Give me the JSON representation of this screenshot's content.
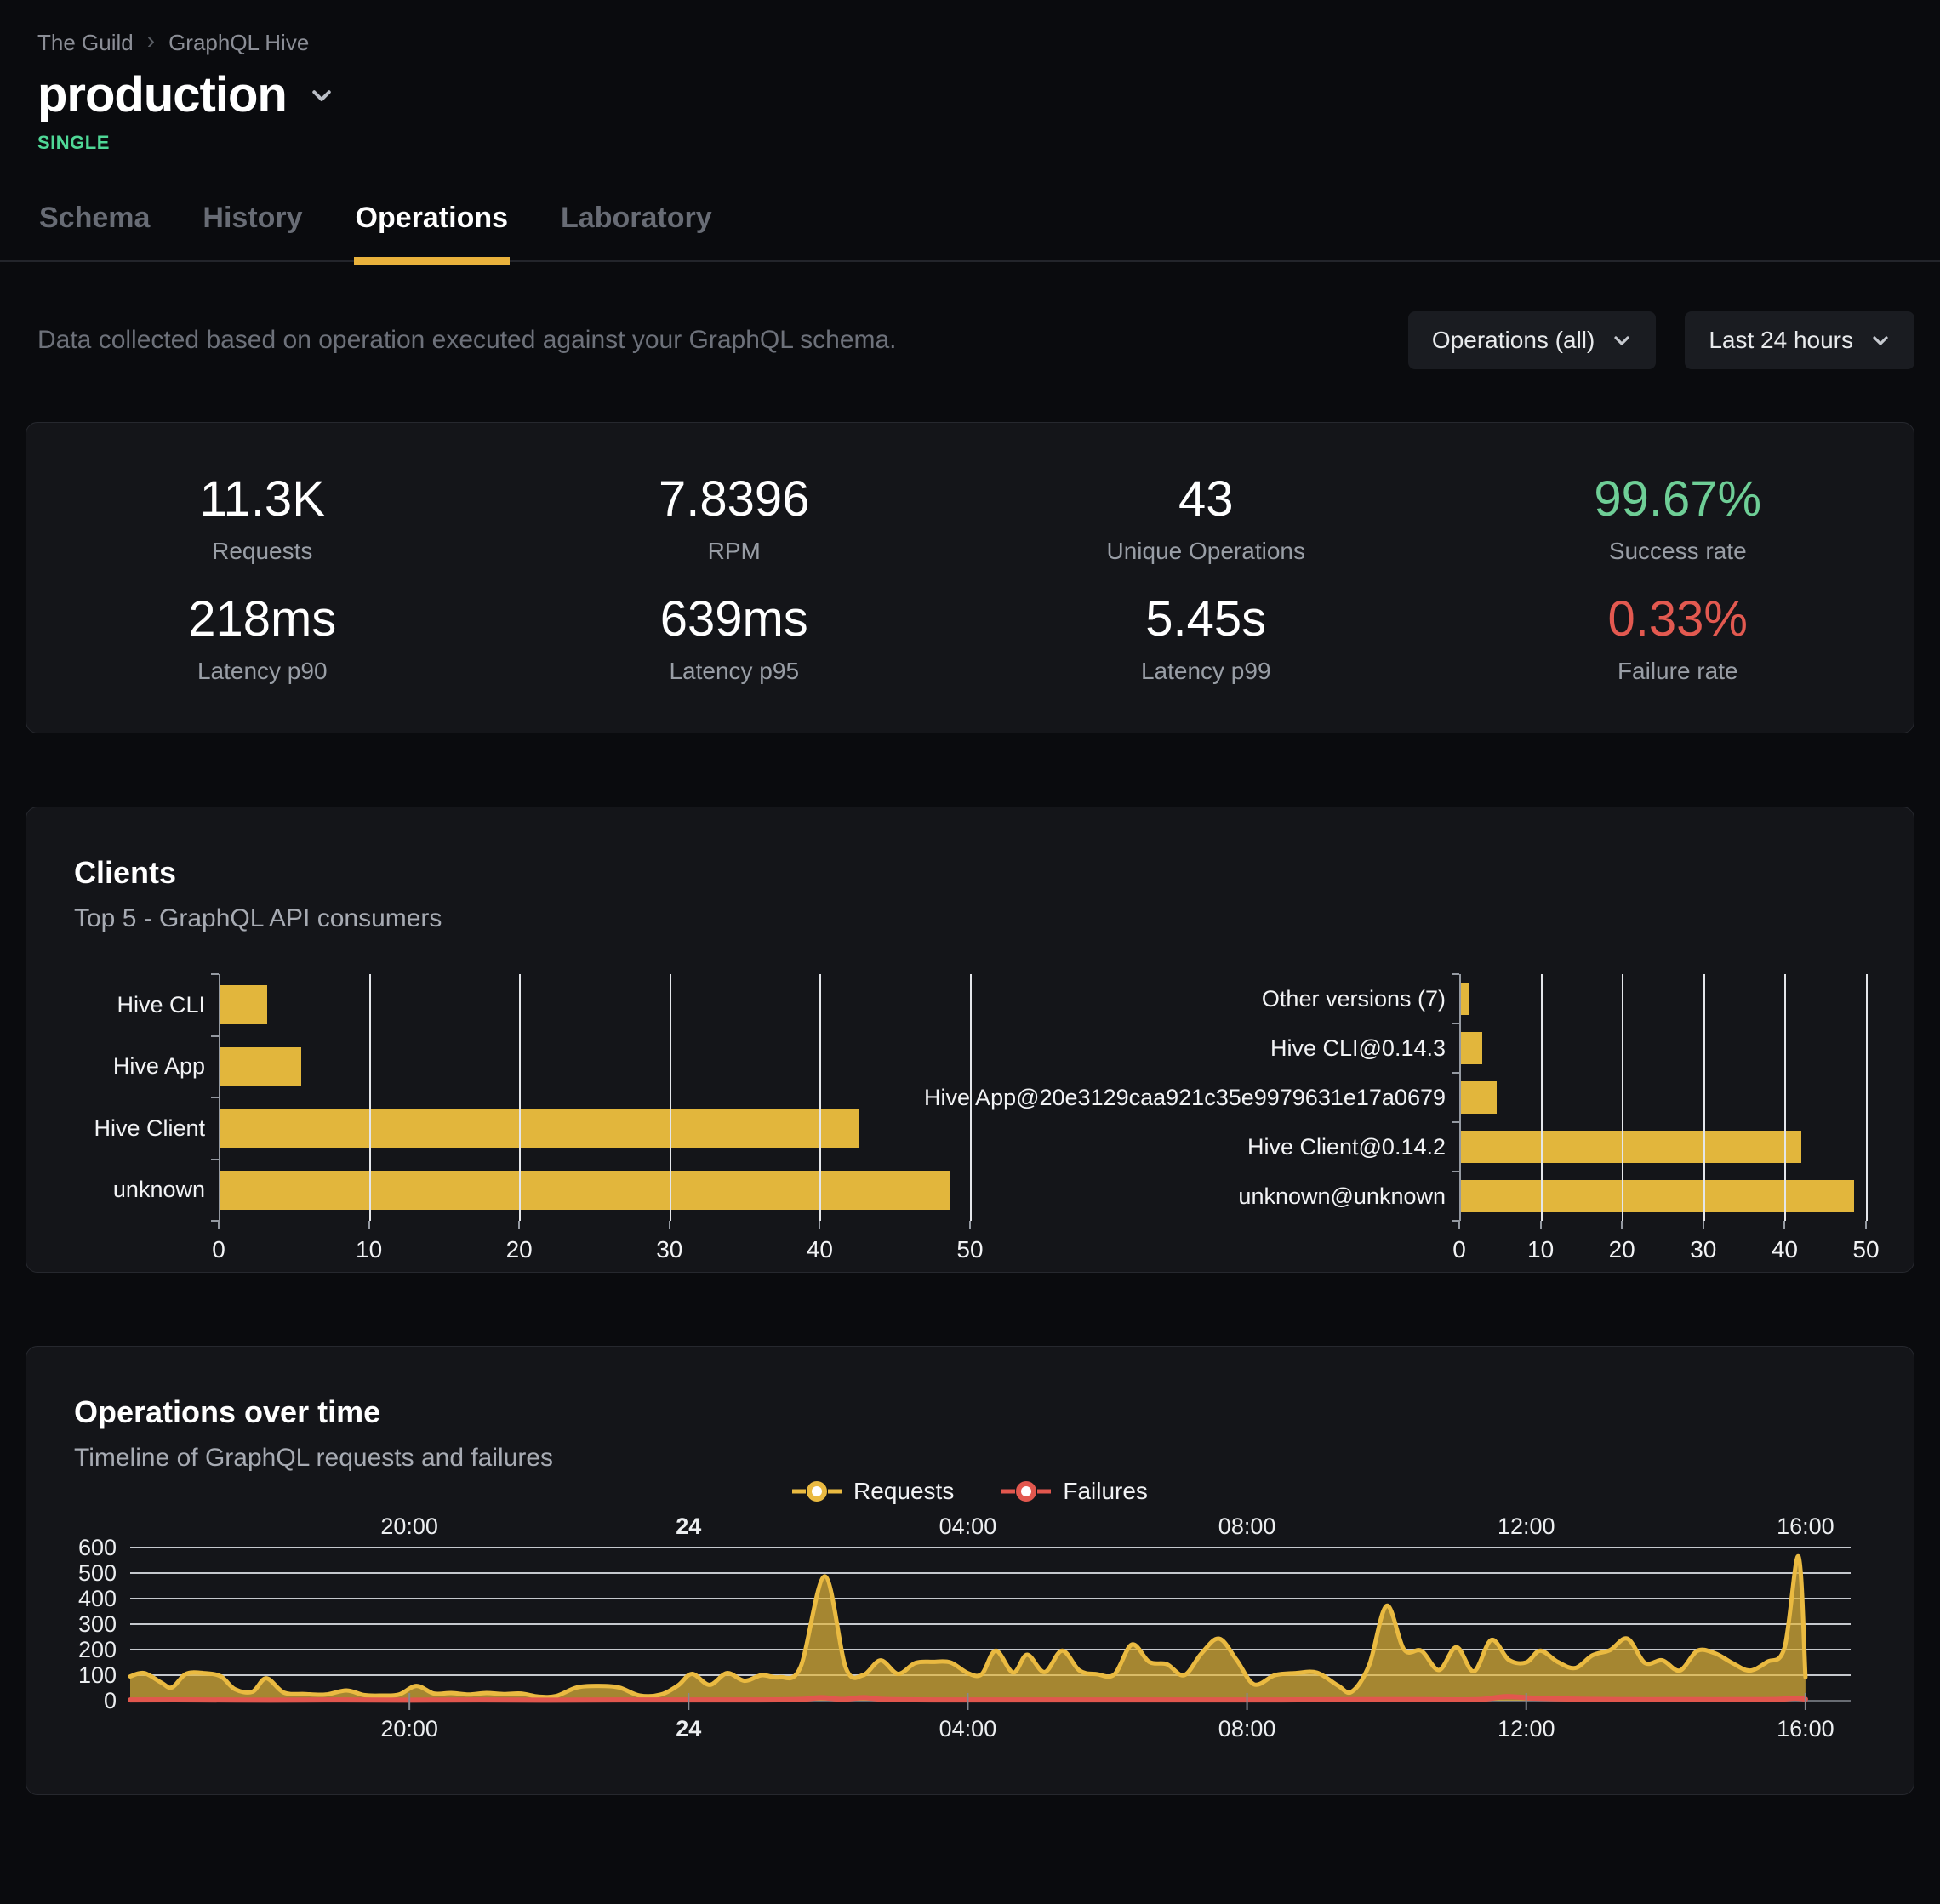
{
  "colors": {
    "accent": "#e2b63c",
    "accent_line": "#eaba41",
    "success": "#6ece96",
    "danger": "#e35950",
    "badge": "#4fd796",
    "grid": "#d9dce1",
    "card_bg": "#141519",
    "page_bg": "#0a0b0e"
  },
  "header": {
    "breadcrumb": [
      "The Guild",
      "GraphQL Hive"
    ],
    "breadcrumb_separator": "›",
    "project": "production",
    "badge": "SINGLE"
  },
  "tabs": {
    "items": [
      {
        "label": "Schema"
      },
      {
        "label": "History"
      },
      {
        "label": "Operations"
      },
      {
        "label": "Laboratory"
      }
    ],
    "active": "Operations"
  },
  "toolbar": {
    "description": "Data collected based on operation executed against your GraphQL schema.",
    "filters": [
      {
        "label": "Operations (all)"
      },
      {
        "label": "Last 24 hours"
      }
    ]
  },
  "stats": {
    "items": [
      {
        "value": "11.3K",
        "label": "Requests",
        "color": "default"
      },
      {
        "value": "7.8396",
        "label": "RPM",
        "color": "default"
      },
      {
        "value": "43",
        "label": "Unique Operations",
        "color": "default"
      },
      {
        "value": "99.67%",
        "label": "Success rate",
        "color": "success"
      },
      {
        "value": "218ms",
        "label": "Latency p90",
        "color": "default"
      },
      {
        "value": "639ms",
        "label": "Latency p95",
        "color": "default"
      },
      {
        "value": "5.45s",
        "label": "Latency p99",
        "color": "default"
      },
      {
        "value": "0.33%",
        "label": "Failure rate",
        "color": "danger"
      }
    ]
  },
  "clients": {
    "title": "Clients",
    "subtitle": "Top 5 - GraphQL API consumers"
  },
  "operations_over_time": {
    "title": "Operations over time",
    "subtitle": "Timeline of GraphQL requests and failures"
  },
  "chart_data": [
    {
      "id": "clients_by_name",
      "type": "bar",
      "orientation": "horizontal",
      "categories": [
        "Hive CLI",
        "Hive App",
        "Hive Client",
        "unknown"
      ],
      "values": [
        3.2,
        5.5,
        42.6,
        48.7
      ],
      "xlim": [
        0,
        50
      ],
      "ticks": [
        0,
        10,
        20,
        30,
        40,
        50
      ],
      "bar_color": "#e2b63c",
      "grid": true
    },
    {
      "id": "clients_by_version",
      "type": "bar",
      "orientation": "horizontal",
      "categories": [
        "Other versions (7)",
        "Hive CLI@0.14.3",
        "Hive App@20e3129caa921c35e9979631e17a0679",
        "Hive Client@0.14.2",
        "unknown@unknown"
      ],
      "values": [
        1.2,
        2.8,
        4.6,
        42.0,
        48.5
      ],
      "xlim": [
        0,
        50
      ],
      "ticks": [
        0,
        10,
        20,
        30,
        40,
        50
      ],
      "bar_color": "#e2b63c",
      "grid": true
    },
    {
      "id": "operations_timeline",
      "type": "area",
      "title": "Operations over time",
      "ylim": [
        0,
        600
      ],
      "yticks": [
        0,
        100,
        200,
        300,
        400,
        500,
        600
      ],
      "x_domain_hours": [
        0,
        24.55
      ],
      "xticks": [
        {
          "t": 4,
          "label": "20:00",
          "bold": false
        },
        {
          "t": 8,
          "label": "24",
          "bold": true
        },
        {
          "t": 12,
          "label": "04:00",
          "bold": false
        },
        {
          "t": 16,
          "label": "08:00",
          "bold": false
        },
        {
          "t": 20,
          "label": "12:00",
          "bold": false
        },
        {
          "t": 24,
          "label": "16:00",
          "bold": false
        }
      ],
      "grid": true,
      "legend_position": "top-center",
      "series": [
        {
          "name": "Requests",
          "color": "#eaba41",
          "points": [
            [
              0,
              95
            ],
            [
              0.2,
              108
            ],
            [
              0.45,
              70
            ],
            [
              0.6,
              52
            ],
            [
              0.8,
              105
            ],
            [
              1.05,
              108
            ],
            [
              1.3,
              95
            ],
            [
              1.5,
              45
            ],
            [
              1.75,
              35
            ],
            [
              1.95,
              88
            ],
            [
              2.2,
              32
            ],
            [
              2.5,
              26
            ],
            [
              2.8,
              24
            ],
            [
              3.1,
              40
            ],
            [
              3.35,
              22
            ],
            [
              3.6,
              20
            ],
            [
              3.85,
              24
            ],
            [
              4.1,
              58
            ],
            [
              4.35,
              28
            ],
            [
              4.6,
              30
            ],
            [
              4.85,
              24
            ],
            [
              5.1,
              30
            ],
            [
              5.35,
              26
            ],
            [
              5.6,
              28
            ],
            [
              5.85,
              16
            ],
            [
              6.1,
              18
            ],
            [
              6.4,
              52
            ],
            [
              6.7,
              58
            ],
            [
              7.0,
              52
            ],
            [
              7.3,
              20
            ],
            [
              7.6,
              24
            ],
            [
              7.85,
              60
            ],
            [
              8.05,
              105
            ],
            [
              8.3,
              62
            ],
            [
              8.55,
              108
            ],
            [
              8.8,
              78
            ],
            [
              9.05,
              100
            ],
            [
              9.3,
              92
            ],
            [
              9.6,
              130
            ],
            [
              9.95,
              487
            ],
            [
              10.25,
              130
            ],
            [
              10.5,
              100
            ],
            [
              10.75,
              158
            ],
            [
              11.0,
              105
            ],
            [
              11.25,
              148
            ],
            [
              11.5,
              152
            ],
            [
              11.75,
              150
            ],
            [
              12.0,
              108
            ],
            [
              12.2,
              104
            ],
            [
              12.4,
              196
            ],
            [
              12.65,
              110
            ],
            [
              12.85,
              180
            ],
            [
              13.1,
              112
            ],
            [
              13.35,
              196
            ],
            [
              13.6,
              118
            ],
            [
              13.85,
              104
            ],
            [
              14.1,
              103
            ],
            [
              14.35,
              220
            ],
            [
              14.6,
              152
            ],
            [
              14.85,
              143
            ],
            [
              15.1,
              100
            ],
            [
              15.35,
              186
            ],
            [
              15.6,
              243
            ],
            [
              15.85,
              160
            ],
            [
              16.1,
              64
            ],
            [
              16.4,
              100
            ],
            [
              16.7,
              108
            ],
            [
              17.0,
              110
            ],
            [
              17.3,
              60
            ],
            [
              17.5,
              35
            ],
            [
              17.75,
              140
            ],
            [
              18.0,
              372
            ],
            [
              18.25,
              200
            ],
            [
              18.5,
              195
            ],
            [
              18.75,
              120
            ],
            [
              19.0,
              210
            ],
            [
              19.25,
              115
            ],
            [
              19.5,
              238
            ],
            [
              19.75,
              160
            ],
            [
              20.0,
              150
            ],
            [
              20.2,
              196
            ],
            [
              20.45,
              152
            ],
            [
              20.7,
              128
            ],
            [
              20.95,
              178
            ],
            [
              21.2,
              198
            ],
            [
              21.45,
              243
            ],
            [
              21.7,
              148
            ],
            [
              21.95,
              158
            ],
            [
              22.2,
              118
            ],
            [
              22.45,
              195
            ],
            [
              22.7,
              186
            ],
            [
              22.95,
              148
            ],
            [
              23.2,
              118
            ],
            [
              23.45,
              152
            ],
            [
              23.7,
              208
            ],
            [
              23.9,
              565
            ],
            [
              24.0,
              92
            ]
          ]
        },
        {
          "name": "Failures",
          "color": "#e2574e",
          "points": [
            [
              0,
              3
            ],
            [
              1,
              3
            ],
            [
              2,
              2
            ],
            [
              3,
              3
            ],
            [
              4,
              2
            ],
            [
              5,
              3
            ],
            [
              6,
              2
            ],
            [
              7,
              3
            ],
            [
              8,
              3
            ],
            [
              9,
              3
            ],
            [
              9.6,
              5
            ],
            [
              9.9,
              12
            ],
            [
              10.2,
              5
            ],
            [
              10.5,
              12
            ],
            [
              10.8,
              5
            ],
            [
              11.5,
              3
            ],
            [
              12.5,
              3
            ],
            [
              13.5,
              3
            ],
            [
              14.5,
              3
            ],
            [
              15.5,
              3
            ],
            [
              16.5,
              3
            ],
            [
              17.5,
              4
            ],
            [
              18.5,
              4
            ],
            [
              19.3,
              4
            ],
            [
              19.7,
              16
            ],
            [
              20.1,
              10
            ],
            [
              20.5,
              7
            ],
            [
              21.0,
              5
            ],
            [
              21.5,
              4
            ],
            [
              22.0,
              4
            ],
            [
              22.5,
              4
            ],
            [
              23.0,
              4
            ],
            [
              23.6,
              5
            ],
            [
              23.85,
              10
            ],
            [
              24.0,
              6
            ]
          ]
        }
      ]
    }
  ]
}
